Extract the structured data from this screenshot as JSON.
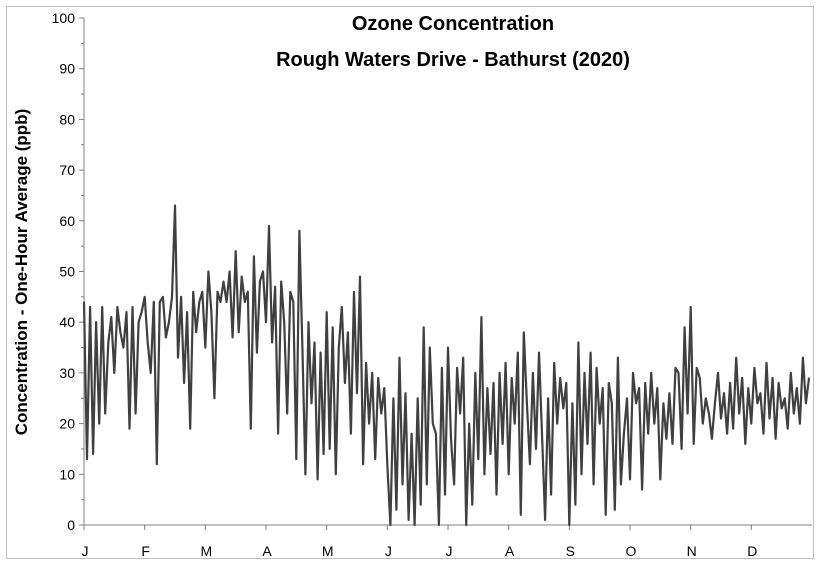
{
  "chart_data": {
    "type": "line",
    "title": "Ozone Concentration",
    "subtitle": "Rough Waters Drive - Bathurst (2020)",
    "ylabel": "Concentration - One-Hour Average (ppb)",
    "xlabel": "",
    "ylim": [
      0,
      100
    ],
    "yticks": [
      0,
      10,
      20,
      30,
      40,
      50,
      60,
      70,
      80,
      90,
      100
    ],
    "xlim": [
      0,
      12
    ],
    "months": [
      "J",
      "F",
      "M",
      "A",
      "M",
      "J",
      "J",
      "A",
      "S",
      "O",
      "N",
      "D"
    ],
    "grid": false,
    "legend": "none",
    "line_color": "#404040",
    "series": [
      {
        "x": [
          0.0,
          0.05,
          0.1,
          0.15,
          0.2,
          0.25,
          0.3,
          0.35,
          0.4,
          0.45,
          0.5,
          0.55,
          0.6,
          0.65,
          0.7,
          0.75,
          0.8,
          0.85,
          0.9,
          0.95,
          1.0,
          1.05,
          1.1,
          1.15,
          1.2,
          1.25,
          1.3,
          1.35,
          1.4,
          1.45,
          1.5,
          1.55,
          1.6,
          1.65,
          1.7,
          1.75,
          1.8,
          1.85,
          1.9,
          1.95,
          2.0,
          2.05,
          2.1,
          2.15,
          2.2,
          2.25,
          2.3,
          2.35,
          2.4,
          2.45,
          2.5,
          2.55,
          2.6,
          2.65,
          2.7,
          2.75,
          2.8,
          2.85,
          2.9,
          2.95,
          3.0,
          3.05,
          3.1,
          3.15,
          3.2,
          3.25,
          3.3,
          3.35,
          3.4,
          3.45,
          3.5,
          3.55,
          3.6,
          3.65,
          3.7,
          3.75,
          3.8,
          3.85,
          3.9,
          3.95,
          4.0,
          4.05,
          4.1,
          4.15,
          4.2,
          4.25,
          4.3,
          4.35,
          4.4,
          4.45,
          4.5,
          4.55,
          4.6,
          4.65,
          4.7,
          4.75,
          4.8,
          4.85,
          4.9,
          4.95,
          5.0,
          5.05,
          5.1,
          5.15,
          5.2,
          5.25,
          5.3,
          5.35,
          5.4,
          5.45,
          5.5,
          5.55,
          5.6,
          5.65,
          5.7,
          5.75,
          5.8,
          5.85,
          5.9,
          5.95,
          6.0,
          6.05,
          6.1,
          6.15,
          6.2,
          6.25,
          6.3,
          6.35,
          6.4,
          6.45,
          6.5,
          6.55,
          6.6,
          6.65,
          6.7,
          6.75,
          6.8,
          6.85,
          6.9,
          6.95,
          7.0,
          7.05,
          7.1,
          7.15,
          7.2,
          7.25,
          7.3,
          7.35,
          7.4,
          7.45,
          7.5,
          7.55,
          7.6,
          7.65,
          7.7,
          7.75,
          7.8,
          7.85,
          7.9,
          7.95,
          8.0,
          8.05,
          8.1,
          8.15,
          8.2,
          8.25,
          8.3,
          8.35,
          8.4,
          8.45,
          8.5,
          8.55,
          8.6,
          8.65,
          8.7,
          8.75,
          8.8,
          8.85,
          8.9,
          8.95,
          9.0,
          9.05,
          9.1,
          9.15,
          9.2,
          9.25,
          9.3,
          9.35,
          9.4,
          9.45,
          9.5,
          9.55,
          9.6,
          9.65,
          9.7,
          9.75,
          9.8,
          9.85,
          9.9,
          9.95,
          10.0,
          10.05,
          10.1,
          10.15,
          10.2,
          10.25,
          10.3,
          10.35,
          10.4,
          10.45,
          10.5,
          10.55,
          10.6,
          10.65,
          10.7,
          10.75,
          10.8,
          10.85,
          10.9,
          10.95,
          11.0,
          11.05,
          11.1,
          11.15,
          11.2,
          11.25,
          11.3,
          11.35,
          11.4,
          11.45,
          11.5,
          11.55,
          11.6,
          11.65,
          11.7,
          11.75,
          11.8,
          11.85,
          11.9,
          11.95
        ],
        "values": [
          44,
          13,
          43,
          14,
          40,
          20,
          43,
          22,
          36,
          41,
          30,
          43,
          38,
          35,
          42,
          19,
          43,
          22,
          40,
          42,
          45,
          36,
          30,
          44,
          12,
          44,
          45,
          37,
          40,
          45,
          63,
          33,
          45,
          28,
          42,
          19,
          46,
          38,
          44,
          46,
          35,
          50,
          42,
          25,
          46,
          44,
          48,
          44,
          50,
          37,
          54,
          38,
          49,
          44,
          46,
          19,
          53,
          34,
          48,
          50,
          40,
          59,
          36,
          47,
          18,
          48,
          40,
          22,
          46,
          44,
          13,
          58,
          35,
          10,
          40,
          24,
          36,
          9,
          34,
          14,
          42,
          15,
          39,
          10,
          35,
          43,
          28,
          38,
          18,
          46,
          26,
          49,
          12,
          32,
          20,
          30,
          13,
          29,
          22,
          27,
          12,
          0,
          25,
          3,
          33,
          8,
          26,
          1,
          18,
          0,
          25,
          4,
          39,
          8,
          35,
          20,
          18,
          0,
          31,
          6,
          35,
          17,
          8,
          31,
          22,
          33,
          0,
          20,
          4,
          30,
          13,
          41,
          10,
          27,
          14,
          28,
          6,
          30,
          16,
          32,
          10,
          29,
          20,
          34,
          2,
          38,
          24,
          12,
          30,
          15,
          34,
          18,
          1,
          25,
          6,
          32,
          20,
          29,
          23,
          28,
          0,
          24,
          4,
          36,
          10,
          30,
          16,
          34,
          8,
          31,
          20,
          27,
          2,
          28,
          24,
          3,
          33,
          8,
          18,
          25,
          9,
          30,
          24,
          27,
          7,
          28,
          18,
          30,
          20,
          27,
          9,
          24,
          17,
          26,
          16,
          31,
          30,
          15,
          39,
          22,
          43,
          16,
          31,
          29,
          20,
          25,
          22,
          17,
          24,
          30,
          21,
          26,
          18,
          28,
          19,
          33,
          22,
          29,
          16,
          27,
          20,
          31,
          24,
          26,
          18,
          32,
          21,
          29,
          17,
          28,
          23,
          25,
          19,
          30,
          22,
          27,
          20,
          33,
          24,
          29
        ]
      }
    ]
  }
}
